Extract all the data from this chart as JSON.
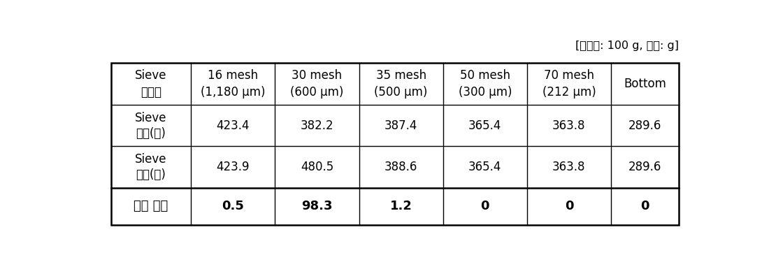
{
  "caption": "[샘플양: 100 g, 단위: g]",
  "col_headers_line1": [
    "Sieve",
    "16 mesh",
    "30 mesh",
    "35 mesh",
    "50 mesh",
    "70 mesh",
    "Bottom"
  ],
  "col_headers_line2": [
    "사이즈",
    "(1,180 μm)",
    "(600 μm)",
    "(500 μm)",
    "(300 μm)",
    "(212 μm)",
    ""
  ],
  "rows": [
    {
      "label_line1": "Sieve",
      "label_line2": "무게(전)",
      "values": [
        "423.4",
        "382.2",
        "387.4",
        "365.4",
        "363.8",
        "289.6"
      ],
      "bold": false
    },
    {
      "label_line1": "Sieve",
      "label_line2": "무게(후)",
      "values": [
        "423.9",
        "480.5",
        "388.6",
        "365.4",
        "363.8",
        "289.6"
      ],
      "bold": false
    },
    {
      "label_line1": "제품 무게",
      "label_line2": "",
      "values": [
        "0.5",
        "98.3",
        "1.2",
        "0",
        "0",
        "0"
      ],
      "bold": true
    }
  ],
  "bg_color": "#ffffff",
  "line_color": "#000000",
  "text_color": "#000000",
  "caption_fontsize": 11.5,
  "header_fontsize": 12,
  "cell_fontsize": 12,
  "bold_fontsize": 13
}
